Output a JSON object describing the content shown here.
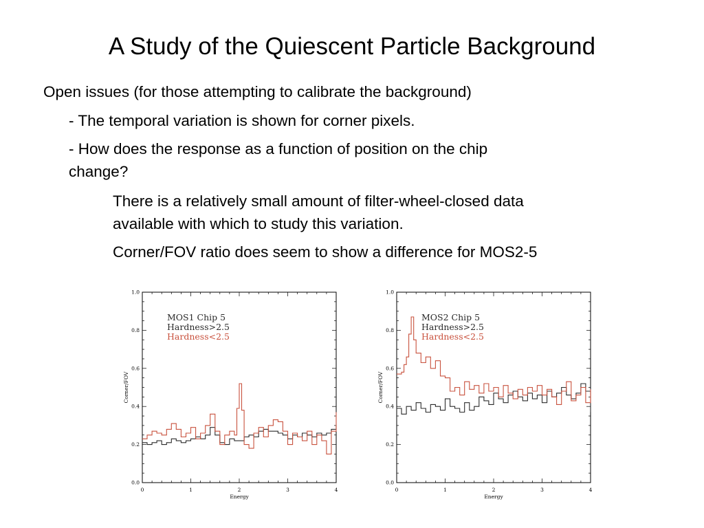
{
  "slide": {
    "title": "A Study of the Quiescent Particle Background",
    "lines": [
      "Open issues (for those attempting to calibrate the background)",
      "- The temporal variation is shown for corner pixels.",
      "- How does the response as a function of position on the chip",
      "change?",
      "There is a relatively small amount of filter-wheel-closed data",
      "available with which to study this variation.",
      "Corner/FOV ratio does seem to show a difference for MOS2-5"
    ]
  },
  "colors": {
    "hard": "#2a2a2a",
    "soft": "#c8503c"
  },
  "chart_data": [
    {
      "type": "line",
      "xlabel": "Energy",
      "ylabel": "Corner/FOV",
      "xlim": [
        0,
        4
      ],
      "ylim": [
        0,
        1
      ],
      "xticks": [
        "0",
        "1",
        "2",
        "3",
        "4"
      ],
      "yticks": [
        "0.0",
        "0.2",
        "0.4",
        "0.6",
        "0.8",
        "1.0"
      ],
      "legend": [
        "MOS1 Chip 5",
        "Hardness>2.5",
        "Hardness<2.5"
      ],
      "legend_position": "top-left",
      "series": [
        {
          "name": "Hardness>2.5",
          "color": "#2a2a2a",
          "x": [
            0.0,
            0.1,
            0.2,
            0.3,
            0.4,
            0.5,
            0.6,
            0.7,
            0.8,
            0.9,
            1.0,
            1.1,
            1.2,
            1.3,
            1.4,
            1.5,
            1.6,
            1.7,
            1.8,
            1.9,
            2.0,
            2.1,
            2.2,
            2.3,
            2.4,
            2.5,
            2.6,
            2.7,
            2.8,
            2.9,
            3.0,
            3.1,
            3.2,
            3.3,
            3.4,
            3.5,
            3.6,
            3.7,
            3.8,
            3.9,
            4.0
          ],
          "y": [
            0.21,
            0.2,
            0.21,
            0.22,
            0.2,
            0.21,
            0.23,
            0.22,
            0.21,
            0.22,
            0.23,
            0.24,
            0.23,
            0.25,
            0.29,
            0.25,
            0.21,
            0.2,
            0.23,
            0.22,
            0.22,
            0.24,
            0.25,
            0.24,
            0.27,
            0.28,
            0.27,
            0.27,
            0.26,
            0.25,
            0.23,
            0.25,
            0.24,
            0.26,
            0.25,
            0.24,
            0.26,
            0.25,
            0.26,
            0.28,
            0.3
          ]
        },
        {
          "name": "Hardness<2.5",
          "color": "#c8503c",
          "x": [
            0.0,
            0.1,
            0.2,
            0.3,
            0.4,
            0.5,
            0.6,
            0.7,
            0.8,
            0.9,
            1.0,
            1.1,
            1.2,
            1.3,
            1.4,
            1.5,
            1.6,
            1.7,
            1.8,
            1.9,
            1.95,
            2.0,
            2.05,
            2.1,
            2.2,
            2.3,
            2.4,
            2.5,
            2.6,
            2.7,
            2.8,
            2.9,
            3.0,
            3.1,
            3.2,
            3.3,
            3.4,
            3.5,
            3.6,
            3.7,
            3.8,
            3.9,
            4.0
          ],
          "y": [
            0.23,
            0.25,
            0.27,
            0.26,
            0.25,
            0.28,
            0.31,
            0.28,
            0.24,
            0.26,
            0.29,
            0.23,
            0.26,
            0.3,
            0.36,
            0.27,
            0.2,
            0.25,
            0.27,
            0.25,
            0.39,
            0.52,
            0.38,
            0.2,
            0.18,
            0.26,
            0.29,
            0.24,
            0.3,
            0.33,
            0.32,
            0.27,
            0.2,
            0.26,
            0.24,
            0.22,
            0.27,
            0.2,
            0.25,
            0.22,
            0.15,
            0.27,
            0.37
          ]
        }
      ]
    },
    {
      "type": "line",
      "xlabel": "Energy",
      "ylabel": "Corner/FOV",
      "xlim": [
        0,
        4
      ],
      "ylim": [
        0,
        1
      ],
      "xticks": [
        "0",
        "1",
        "2",
        "3",
        "4"
      ],
      "yticks": [
        "0.0",
        "0.2",
        "0.4",
        "0.6",
        "0.8",
        "1.0"
      ],
      "legend": [
        "MOS2 Chip 5",
        "Hardness>2.5",
        "Hardness<2.5"
      ],
      "legend_position": "top-left",
      "series": [
        {
          "name": "Hardness>2.5",
          "color": "#2a2a2a",
          "x": [
            0.0,
            0.1,
            0.2,
            0.3,
            0.4,
            0.5,
            0.6,
            0.7,
            0.8,
            0.9,
            1.0,
            1.1,
            1.2,
            1.3,
            1.4,
            1.5,
            1.6,
            1.7,
            1.8,
            1.9,
            2.0,
            2.1,
            2.2,
            2.3,
            2.4,
            2.5,
            2.6,
            2.7,
            2.8,
            2.9,
            3.0,
            3.1,
            3.2,
            3.3,
            3.4,
            3.5,
            3.6,
            3.7,
            3.8,
            3.9,
            4.0
          ],
          "y": [
            0.39,
            0.36,
            0.4,
            0.38,
            0.42,
            0.39,
            0.37,
            0.41,
            0.4,
            0.38,
            0.44,
            0.4,
            0.39,
            0.37,
            0.42,
            0.38,
            0.4,
            0.45,
            0.43,
            0.41,
            0.47,
            0.44,
            0.42,
            0.46,
            0.48,
            0.45,
            0.43,
            0.47,
            0.44,
            0.46,
            0.42,
            0.48,
            0.45,
            0.47,
            0.5,
            0.46,
            0.44,
            0.47,
            0.52,
            0.48,
            0.37
          ]
        },
        {
          "name": "Hardness<2.5",
          "color": "#c8503c",
          "x": [
            0.0,
            0.1,
            0.15,
            0.2,
            0.25,
            0.3,
            0.35,
            0.4,
            0.5,
            0.6,
            0.7,
            0.8,
            0.9,
            1.0,
            1.1,
            1.2,
            1.3,
            1.4,
            1.5,
            1.6,
            1.7,
            1.8,
            1.9,
            2.0,
            2.1,
            2.2,
            2.3,
            2.4,
            2.5,
            2.6,
            2.7,
            2.8,
            2.9,
            3.0,
            3.1,
            3.2,
            3.3,
            3.4,
            3.5,
            3.6,
            3.7,
            3.8,
            3.9,
            4.0
          ],
          "y": [
            0.57,
            0.58,
            0.62,
            0.66,
            0.78,
            0.87,
            0.75,
            0.68,
            0.63,
            0.66,
            0.6,
            0.64,
            0.56,
            0.55,
            0.48,
            0.5,
            0.46,
            0.53,
            0.49,
            0.51,
            0.47,
            0.52,
            0.48,
            0.5,
            0.45,
            0.51,
            0.47,
            0.44,
            0.49,
            0.46,
            0.5,
            0.48,
            0.51,
            0.46,
            0.49,
            0.45,
            0.41,
            0.48,
            0.53,
            0.43,
            0.46,
            0.5,
            0.42,
            0.49
          ]
        }
      ]
    }
  ]
}
